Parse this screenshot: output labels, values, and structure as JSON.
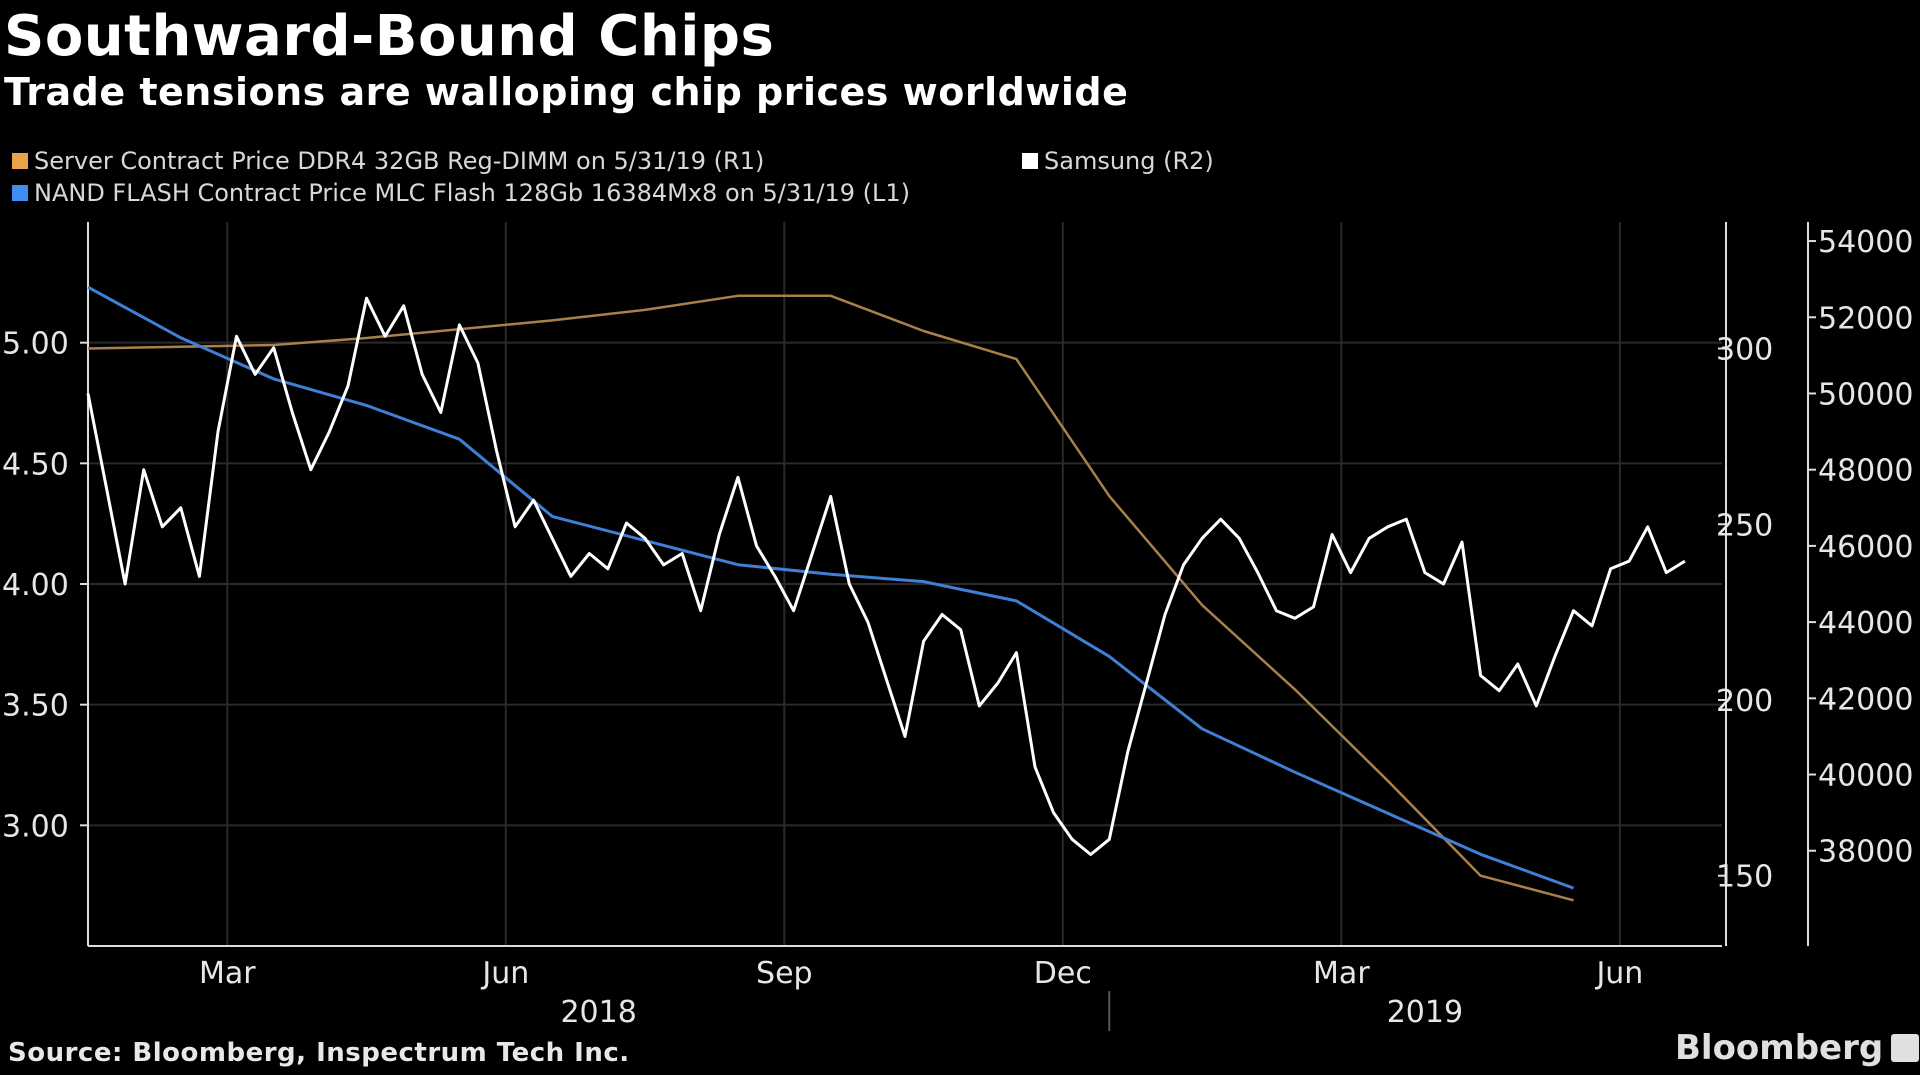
{
  "title": "Southward-Bound Chips",
  "subtitle": "Trade tensions are walloping chip prices worldwide",
  "source": "Source: Bloomberg, Inspectrum Tech Inc.",
  "brand": "Bloomberg",
  "colors": {
    "background": "#000000",
    "server": "#a8804a",
    "nand": "#3f7fd6",
    "samsung": "#ffffff",
    "grid": "#2a2a2a",
    "axis": "#dddddd"
  },
  "chart_data": {
    "type": "line",
    "title": "Southward-Bound Chips",
    "legend": [
      {
        "id": "server",
        "label": "Server Contract Price DDR4 32GB Reg-DIMM on 5/31/19 (R1)"
      },
      {
        "id": "samsung",
        "label": "Samsung (R2)"
      },
      {
        "id": "nand",
        "label": "NAND FLASH Contract Price MLC Flash 128Gb 16384Mx8 on 5/31/19 (L1)"
      }
    ],
    "x_axis": {
      "range": [
        0,
        17.6
      ],
      "ticks": [
        {
          "x": 1.5,
          "label": "Mar"
        },
        {
          "x": 4.5,
          "label": "Jun"
        },
        {
          "x": 7.5,
          "label": "Sep"
        },
        {
          "x": 10.5,
          "label": "Dec"
        },
        {
          "x": 13.5,
          "label": "Mar"
        },
        {
          "x": 16.5,
          "label": "Jun"
        }
      ],
      "years": [
        {
          "x": 5.5,
          "label": "2018"
        },
        {
          "x": 14.4,
          "label": "2019"
        }
      ],
      "year_divider": 11.0
    },
    "left_axis": {
      "label": "L1",
      "range": [
        2.5,
        5.5
      ],
      "ticks": [
        3.0,
        3.5,
        4.0,
        4.5,
        5.0
      ],
      "tick_labels": [
        "3.00",
        "3.50",
        "4.00",
        "4.50",
        "5.00"
      ]
    },
    "right1_axis": {
      "label": "R1",
      "range": [
        130,
        336
      ],
      "ticks": [
        150,
        200,
        250,
        300
      ],
      "tick_labels": [
        "150",
        "200",
        "250",
        "300"
      ]
    },
    "right2_axis": {
      "label": "R2",
      "range": [
        35500,
        54500
      ],
      "ticks": [
        38000,
        40000,
        42000,
        44000,
        46000,
        48000,
        50000,
        52000,
        54000
      ],
      "tick_labels": [
        "38000",
        "40000",
        "42000",
        "44000",
        "46000",
        "48000",
        "50000",
        "52000",
        "54000"
      ]
    },
    "series": [
      {
        "id": "server",
        "name": "Server Contract Price DDR4 32GB Reg-DIMM on 5/31/19 (R1)",
        "axis": "right1",
        "x": [
          0,
          2.0,
          3.0,
          5.0,
          6.0,
          7.0,
          8.0,
          9.0,
          10.0,
          11.0,
          12.0,
          13.0,
          14.0,
          15.0,
          16.0
        ],
        "y": [
          300,
          301,
          303,
          308,
          311,
          315,
          315,
          305,
          297,
          258,
          227,
          203,
          177,
          150,
          143
        ]
      },
      {
        "id": "nand",
        "name": "NAND FLASH Contract Price MLC Flash 128Gb 16384Mx8 on 5/31/19 (L1)",
        "axis": "left",
        "x": [
          0,
          1.0,
          2.0,
          3.0,
          4.0,
          5.0,
          6.0,
          7.0,
          8.0,
          9.0,
          10.0,
          11.0,
          12.0,
          13.0,
          14.0,
          15.0,
          16.0
        ],
        "y": [
          5.23,
          5.02,
          4.85,
          4.74,
          4.6,
          4.28,
          4.18,
          4.08,
          4.04,
          4.01,
          3.93,
          3.7,
          3.4,
          3.22,
          3.05,
          2.88,
          2.74
        ]
      },
      {
        "id": "samsung",
        "name": "Samsung (R2)",
        "axis": "right2",
        "x": [
          0,
          0.2,
          0.4,
          0.6,
          0.8,
          1.0,
          1.2,
          1.4,
          1.6,
          1.8,
          2.0,
          2.2,
          2.4,
          2.6,
          2.8,
          3.0,
          3.2,
          3.4,
          3.6,
          3.8,
          4.0,
          4.2,
          4.4,
          4.6,
          4.8,
          5.0,
          5.2,
          5.4,
          5.6,
          5.8,
          6.0,
          6.2,
          6.4,
          6.6,
          6.8,
          7.0,
          7.2,
          7.4,
          7.6,
          7.8,
          8.0,
          8.2,
          8.4,
          8.6,
          8.8,
          9.0,
          9.2,
          9.4,
          9.6,
          9.8,
          10.0,
          10.2,
          10.4,
          10.6,
          10.8,
          11.0,
          11.2,
          11.4,
          11.6,
          11.8,
          12.0,
          12.2,
          12.4,
          12.6,
          12.8,
          13.0,
          13.2,
          13.4,
          13.6,
          13.8,
          14.0,
          14.2,
          14.4,
          14.6,
          14.8,
          15.0,
          15.2,
          15.4,
          15.6,
          15.8,
          16.0,
          16.2,
          16.4,
          16.6,
          16.8,
          17.0,
          17.2
        ],
        "y": [
          50000,
          47500,
          45000,
          48000,
          46500,
          47000,
          45200,
          49000,
          51500,
          50500,
          51200,
          49500,
          48000,
          49000,
          50200,
          52500,
          51500,
          52300,
          50500,
          49500,
          51800,
          50800,
          48500,
          46500,
          47200,
          46200,
          45200,
          45800,
          45400,
          46600,
          46200,
          45500,
          45800,
          44300,
          46300,
          47800,
          46000,
          45200,
          44300,
          45800,
          47300,
          45000,
          44000,
          42500,
          41000,
          43500,
          44200,
          43800,
          41800,
          42400,
          43200,
          40200,
          39000,
          38300,
          37900,
          38300,
          40600,
          42400,
          44200,
          45500,
          46200,
          46700,
          46200,
          45300,
          44300,
          44100,
          44400,
          46300,
          45300,
          46200,
          46500,
          46700,
          45300,
          45000,
          46100,
          42600,
          42200,
          42900,
          41800,
          43100,
          44300,
          43900,
          45400,
          45600,
          46500,
          45300,
          45600
        ]
      }
    ]
  }
}
